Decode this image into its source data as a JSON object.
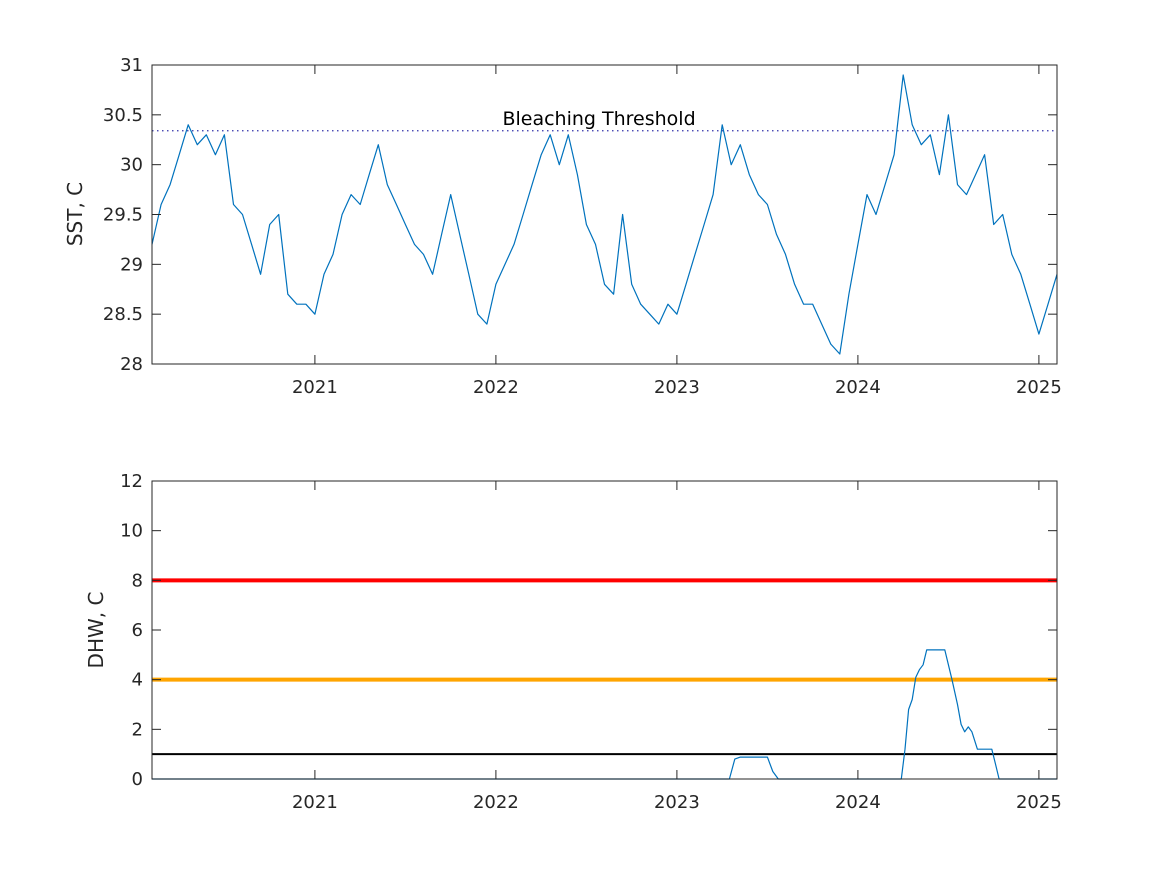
{
  "chart_data": [
    {
      "type": "line",
      "title": "",
      "xlabel": "",
      "ylabel": "SST, C",
      "xlim": [
        2020.1,
        2025.1
      ],
      "ylim": [
        28,
        31
      ],
      "xticks": [
        2021,
        2022,
        2023,
        2024,
        2025
      ],
      "xtick_labels": [
        "2021",
        "2022",
        "2023",
        "2024",
        "2025"
      ],
      "yticks": [
        28,
        28.5,
        29,
        29.5,
        30,
        30.5,
        31
      ],
      "ytick_labels": [
        "28",
        "28.5",
        "29",
        "29.5",
        "30",
        "30.5",
        "31"
      ],
      "grid": false,
      "colors": {
        "series": "#0072BD",
        "threshold": "#3333aa"
      },
      "reference_lines": [
        {
          "label": "Bleaching Threshold",
          "y": 30.34,
          "style": "dotted"
        }
      ],
      "series": [
        {
          "x": [
            2020.1,
            2020.15,
            2020.2,
            2020.25,
            2020.3,
            2020.35,
            2020.4,
            2020.45,
            2020.5,
            2020.55,
            2020.6,
            2020.65,
            2020.7,
            2020.75,
            2020.8,
            2020.85,
            2020.9,
            2020.95,
            2021.0,
            2021.05,
            2021.1,
            2021.15,
            2021.2,
            2021.25,
            2021.3,
            2021.35,
            2021.4,
            2021.45,
            2021.5,
            2021.55,
            2021.6,
            2021.65,
            2021.7,
            2021.75,
            2021.8,
            2021.85,
            2021.9,
            2021.95,
            2022.0,
            2022.05,
            2022.1,
            2022.15,
            2022.2,
            2022.25,
            2022.3,
            2022.35,
            2022.4,
            2022.45,
            2022.5,
            2022.55,
            2022.6,
            2022.65,
            2022.7,
            2022.75,
            2022.8,
            2022.85,
            2022.9,
            2022.95,
            2023.0,
            2023.05,
            2023.1,
            2023.15,
            2023.2,
            2023.25,
            2023.3,
            2023.35,
            2023.4,
            2023.45,
            2023.5,
            2023.55,
            2023.6,
            2023.65,
            2023.7,
            2023.75,
            2023.8,
            2023.85,
            2023.9,
            2023.95,
            2024.0,
            2024.05,
            2024.1,
            2024.15,
            2024.2,
            2024.25,
            2024.3,
            2024.35,
            2024.4,
            2024.45,
            2024.5,
            2024.55,
            2024.6,
            2024.65,
            2024.7,
            2024.75,
            2024.8,
            2024.85,
            2024.9,
            2024.95,
            2025.0,
            2025.05,
            2025.1
          ],
          "values": [
            29.2,
            29.6,
            29.8,
            30.1,
            30.4,
            30.2,
            30.3,
            30.1,
            30.3,
            29.6,
            29.5,
            29.2,
            28.9,
            29.4,
            29.5,
            28.7,
            28.6,
            28.6,
            28.5,
            28.9,
            29.1,
            29.5,
            29.7,
            29.6,
            29.9,
            30.2,
            29.8,
            29.6,
            29.4,
            29.2,
            29.1,
            28.9,
            29.3,
            29.7,
            29.3,
            28.9,
            28.5,
            28.4,
            28.8,
            29.0,
            29.2,
            29.5,
            29.8,
            30.1,
            30.3,
            30.0,
            30.3,
            29.9,
            29.4,
            29.2,
            28.8,
            28.7,
            29.5,
            28.8,
            28.6,
            28.5,
            28.4,
            28.6,
            28.5,
            28.8,
            29.1,
            29.4,
            29.7,
            30.4,
            30.0,
            30.2,
            29.9,
            29.7,
            29.6,
            29.3,
            29.1,
            28.8,
            28.6,
            28.6,
            28.4,
            28.2,
            28.1,
            28.7,
            29.2,
            29.7,
            29.5,
            29.8,
            30.1,
            30.9,
            30.4,
            30.2,
            30.3,
            29.9,
            30.5,
            29.8,
            29.7,
            29.9,
            30.1,
            29.4,
            29.5,
            29.1,
            28.9,
            28.6,
            28.3,
            28.6,
            28.9
          ]
        }
      ]
    },
    {
      "type": "line",
      "title": "",
      "xlabel": "",
      "ylabel": "DHW, C",
      "xlim": [
        2020.1,
        2025.1
      ],
      "ylim": [
        0,
        12
      ],
      "xticks": [
        2021,
        2022,
        2023,
        2024,
        2025
      ],
      "xtick_labels": [
        "2021",
        "2022",
        "2023",
        "2024",
        "2025"
      ],
      "yticks": [
        0,
        2,
        4,
        6,
        8,
        10,
        12
      ],
      "ytick_labels": [
        "0",
        "2",
        "4",
        "6",
        "8",
        "10",
        "12"
      ],
      "grid": false,
      "reference_lines": [
        {
          "y": 8,
          "color": "#ff0000"
        },
        {
          "y": 4,
          "color": "#ffa500"
        },
        {
          "y": 1,
          "color": "#000000"
        }
      ],
      "series": [
        {
          "color": "#0072BD",
          "x": [
            2020.1,
            2023.29,
            2023.32,
            2023.35,
            2023.4,
            2023.5,
            2023.53,
            2023.56,
            2023.6,
            2024.0,
            2024.24,
            2024.26,
            2024.28,
            2024.3,
            2024.32,
            2024.34,
            2024.36,
            2024.38,
            2024.4,
            2024.48,
            2024.52,
            2024.55,
            2024.57,
            2024.59,
            2024.61,
            2024.63,
            2024.66,
            2024.74,
            2024.76,
            2024.78,
            2025.1
          ],
          "values": [
            0,
            0,
            0.8,
            0.88,
            0.88,
            0.88,
            0.3,
            0,
            0,
            0,
            0,
            1.2,
            2.8,
            3.2,
            4.1,
            4.4,
            4.6,
            5.2,
            5.2,
            5.2,
            4.0,
            3.0,
            2.2,
            1.9,
            2.1,
            1.9,
            1.2,
            1.2,
            0.6,
            0,
            0
          ]
        }
      ]
    }
  ]
}
